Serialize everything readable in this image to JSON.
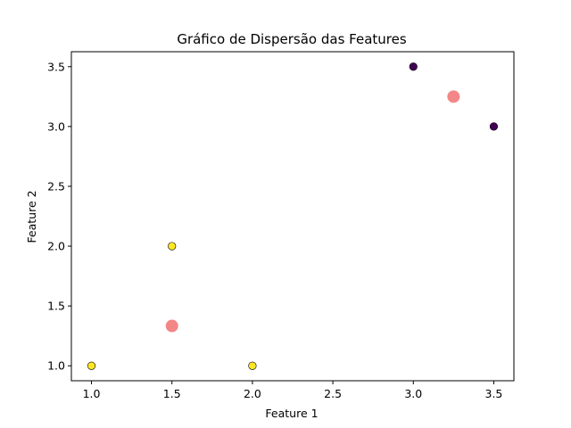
{
  "chart_data": {
    "type": "scatter",
    "title": "Gráfico de Dispersão das Features",
    "xlabel": "Feature 1",
    "ylabel": "Feature 2",
    "xlim": [
      0.875,
      3.625
    ],
    "ylim": [
      0.875,
      3.625
    ],
    "xticks": [
      1.0,
      1.5,
      2.0,
      2.5,
      3.0,
      3.5
    ],
    "yticks": [
      1.0,
      1.5,
      2.0,
      2.5,
      3.0,
      3.5
    ],
    "xtick_labels": [
      "1.0",
      "1.5",
      "2.0",
      "2.5",
      "3.0",
      "3.5"
    ],
    "ytick_labels": [
      "1.0",
      "1.5",
      "2.0",
      "2.5",
      "3.0",
      "3.5"
    ],
    "grid": false,
    "series": [
      {
        "color": "#fde725",
        "edge_color": "#000000",
        "points": [
          {
            "x": 1.0,
            "y": 1.0
          },
          {
            "x": 1.5,
            "y": 2.0
          },
          {
            "x": 2.0,
            "y": 1.0
          }
        ]
      },
      {
        "color": "#440154",
        "edge_color": "#000000",
        "points": [
          {
            "x": 3.0,
            "y": 3.5
          },
          {
            "x": 3.5,
            "y": 3.0
          }
        ]
      },
      {
        "color": "#f28080",
        "edge_color": "#f28080",
        "points": [
          {
            "x": 1.5,
            "y": 1.333
          },
          {
            "x": 3.25,
            "y": 3.25
          }
        ]
      }
    ]
  }
}
